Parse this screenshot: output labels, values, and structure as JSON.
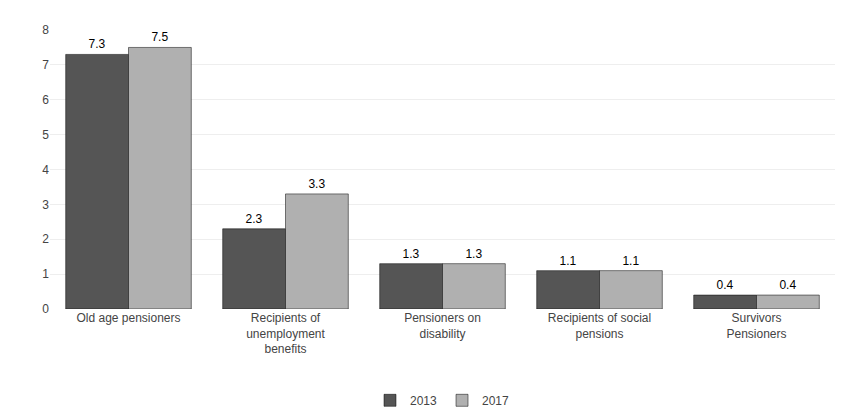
{
  "chart_data": {
    "type": "bar",
    "categories": [
      "Old age pensioners",
      "Recipients of\nunemployment\nbenefits",
      "Pensioners on\ndisability",
      "Recipients of social\npensions",
      "Survivors\nPensioners"
    ],
    "series": [
      {
        "name": "2013",
        "color": "#555555",
        "values": [
          7.3,
          2.3,
          1.3,
          1.1,
          0.4
        ]
      },
      {
        "name": "2017",
        "color": "#b0b0b0",
        "values": [
          7.5,
          3.3,
          1.3,
          1.1,
          0.4
        ]
      }
    ],
    "ylim": [
      0,
      8
    ],
    "yticks": [
      0,
      1,
      2,
      3,
      4,
      5,
      6,
      7,
      8
    ],
    "grid": true,
    "legend": "bottom",
    "data_labels": true
  }
}
